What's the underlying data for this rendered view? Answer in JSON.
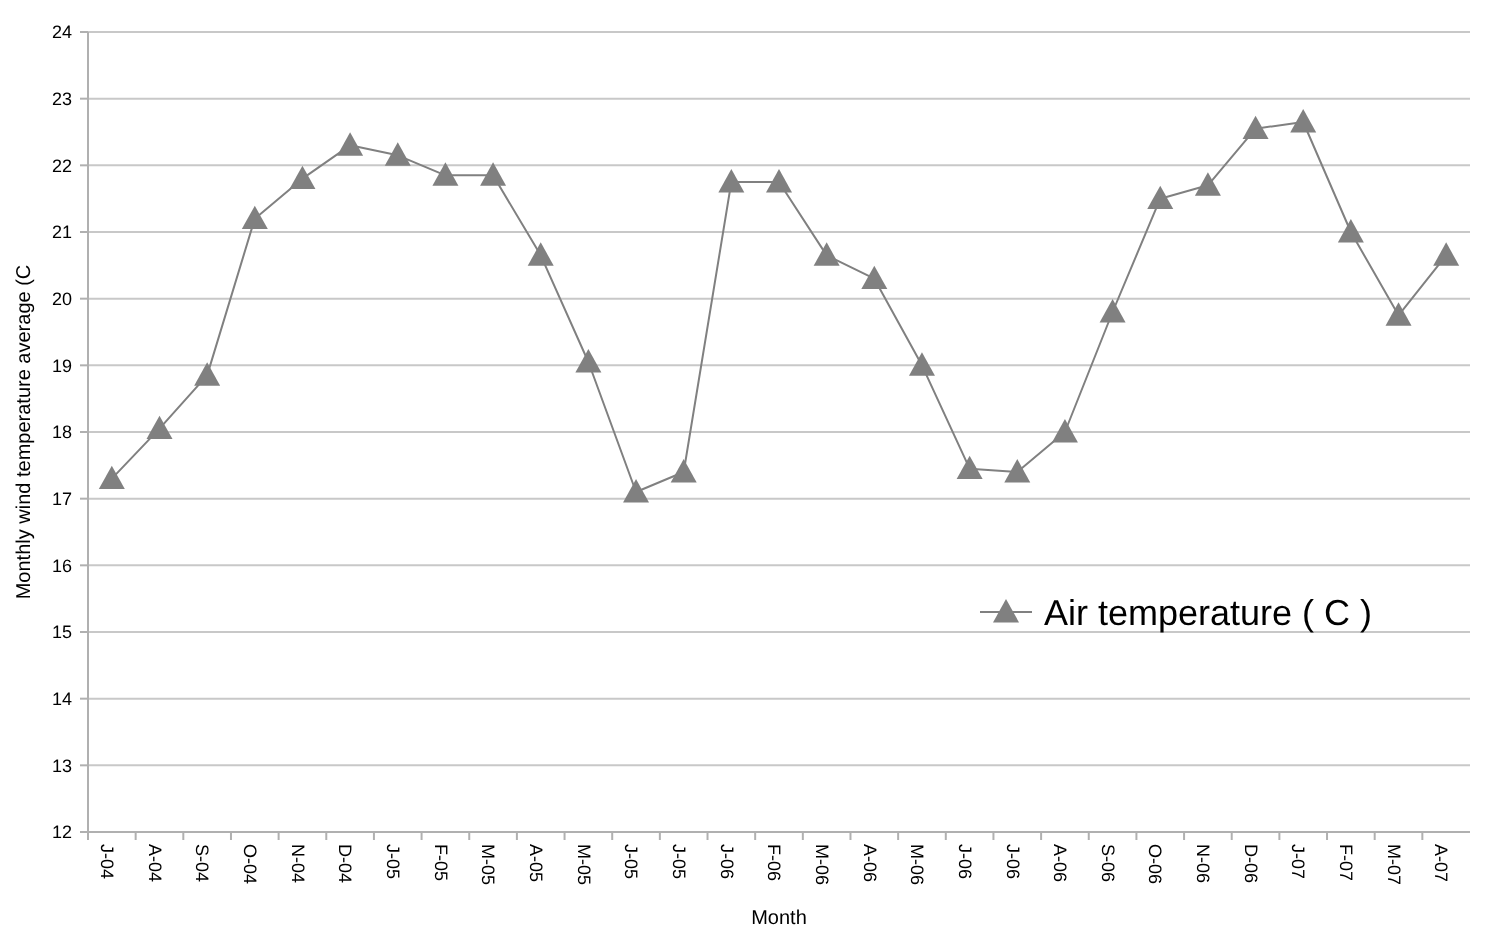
{
  "chart_data": {
    "type": "line",
    "xlabel": "Month",
    "ylabel": "Monthly wind temperature average (C",
    "categories": [
      "J-04",
      "A-04",
      "S-04",
      "O-04",
      "N-04",
      "D-04",
      "J-05",
      "F-05",
      "M-05",
      "A-05",
      "M-05",
      "J-05",
      "J-05",
      "J-06",
      "F-06",
      "M-06",
      "A-06",
      "M-06",
      "J-06",
      "J-06",
      "A-06",
      "S-06",
      "O-06",
      "N-06",
      "D-06",
      "J-07",
      "F-07",
      "M-07",
      "A-07"
    ],
    "series": [
      {
        "name": "Air temperature ( C )",
        "color": "#808080",
        "values": [
          17.3,
          18.05,
          18.85,
          21.2,
          21.8,
          22.3,
          22.15,
          21.85,
          21.85,
          20.65,
          19.05,
          17.1,
          17.4,
          21.75,
          21.75,
          20.65,
          20.3,
          19.0,
          17.45,
          17.4,
          18.0,
          19.8,
          21.5,
          21.7,
          22.55,
          22.65,
          21.0,
          19.75,
          20.65
        ]
      }
    ],
    "ylim": [
      12,
      24
    ],
    "yticks": [
      12,
      13,
      14,
      15,
      16,
      17,
      18,
      19,
      20,
      21,
      22,
      23,
      24
    ],
    "grid": "y",
    "legend": "right",
    "marker": "triangle",
    "line_style": "solid"
  }
}
